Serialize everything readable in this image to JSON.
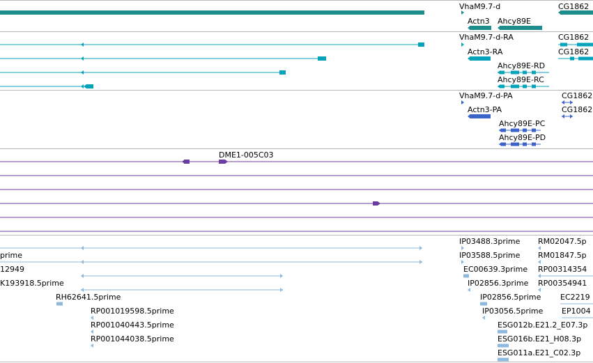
{
  "colors": {
    "gene": "#1c8c8c",
    "mrna": "#05a3b9",
    "protein": "#3b63c8",
    "repeat": "#6a3ea1",
    "est": "#8fb8dc",
    "separator": "#b8b8b8"
  },
  "tracks": {
    "genes": {
      "labels": [
        "VhaM9.7-d",
        "CG1862",
        "Actn3",
        "Ahcy89E"
      ]
    },
    "transcripts": {
      "labels": [
        "VhaM9.7-d-RA",
        "CG1862",
        "Actn3-RA",
        "CG1862",
        "Ahcy89E-RD",
        "Ahcy89E-RC"
      ]
    },
    "proteins": {
      "labels": [
        "VhaM9.7-d-PA",
        "CG1862",
        "Actn3-PA",
        "CG1862",
        "Ahcy89E-PC",
        "Ahcy89E-PD"
      ]
    },
    "repeats": {
      "labels": [
        "DME1-005C03"
      ]
    },
    "ests": {
      "labels": [
        "prime",
        "12949",
        "K193918.5prime",
        "RH62641.5prime",
        "RP001019598.5prime",
        "RP001040443.5prime",
        "RP001044038.5prime",
        "IP03488.3prime",
        "IP03588.5prime",
        "EC00639.3prime",
        "IP02856.3prime",
        "IP02856.5prime",
        "IP03056.5prime",
        "ESG012b.E21.2_E07.3p",
        "ESG016b.E21_H08.3p",
        "ESG011a.E21_C02.3p",
        "RM02047.5p",
        "RM01847.5p",
        "RP00314354",
        "RP00354941",
        "EC2219",
        "EP1004"
      ]
    }
  }
}
